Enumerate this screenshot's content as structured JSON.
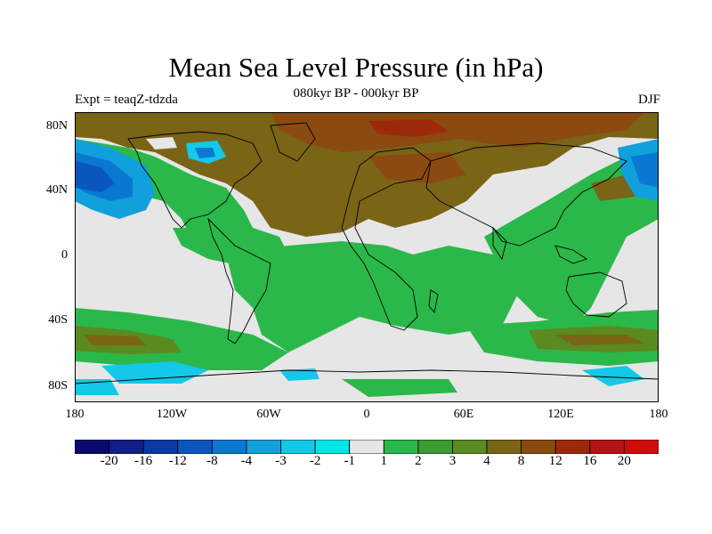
{
  "title": "Mean Sea Level Pressure (in hPa)",
  "subtitle": "080kyr BP - 000kyr BP",
  "left_label": "Expt = teaqZ-tdzda",
  "right_label": "DJF",
  "y_ticks": [
    "80N",
    "40N",
    "0",
    "40S",
    "80S"
  ],
  "x_ticks": [
    "180",
    "120W",
    "60W",
    "0",
    "60E",
    "120E",
    "180"
  ],
  "colors": {
    "background": "#e6e6e6",
    "land_line": "#000000"
  },
  "colorbar": {
    "colors": [
      "#0a0a6e",
      "#0f1e8a",
      "#0a3aa6",
      "#0b56be",
      "#0a78d0",
      "#10a0dc",
      "#14c8e8",
      "#00e5e5",
      "#e6e6e6",
      "#2ab84a",
      "#3c9a30",
      "#5a8a20",
      "#7a6416",
      "#8a4a10",
      "#9c2a0a",
      "#b41414",
      "#d00c0c"
    ],
    "labels": [
      "-20",
      "-16",
      "-12",
      "-8",
      "-4",
      "-3",
      "-2",
      "-1",
      "1",
      "2",
      "3",
      "4",
      "8",
      "12",
      "16",
      "20"
    ]
  }
}
